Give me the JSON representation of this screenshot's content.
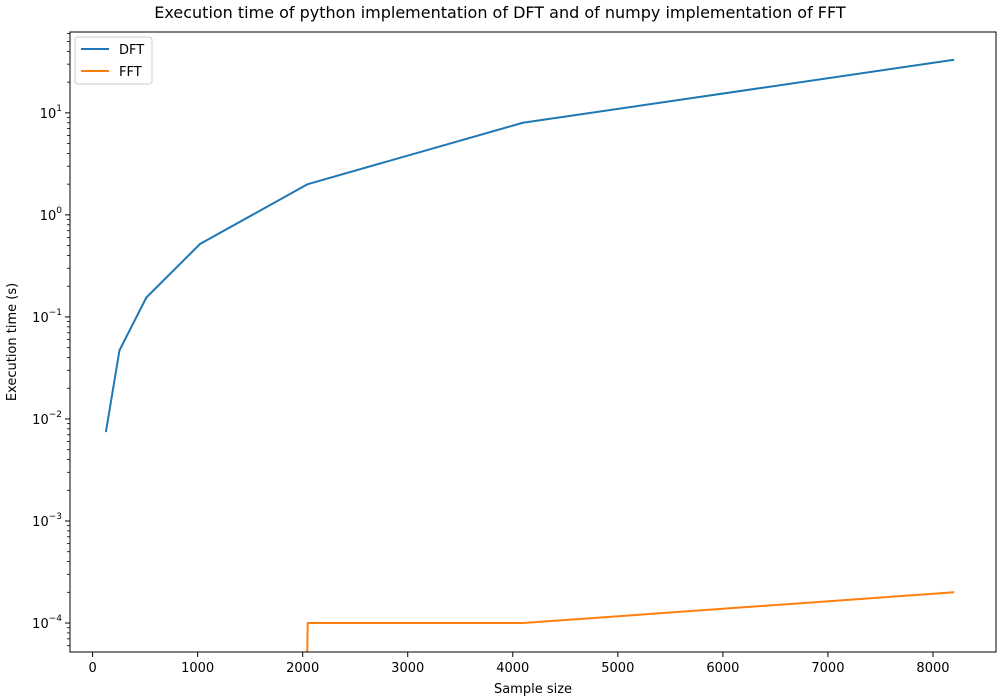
{
  "chart_data": {
    "type": "line",
    "title": "Execution time of python implementation of DFT and of numpy implementation of FFT",
    "xlabel": "Sample size",
    "ylabel": "Execution time (s)",
    "xlim": [
      -215,
      8600
    ],
    "ylim": [
      5.2e-05,
      62
    ],
    "yscale": "log",
    "grid": false,
    "legend_position": "top-left",
    "x_ticks": [
      0,
      1000,
      2000,
      3000,
      4000,
      5000,
      6000,
      7000,
      8000
    ],
    "y_ticks": [
      {
        "value": 0.0001,
        "base": "10",
        "exp": "−4"
      },
      {
        "value": 0.001,
        "base": "10",
        "exp": "−3"
      },
      {
        "value": 0.01,
        "base": "10",
        "exp": "−2"
      },
      {
        "value": 0.1,
        "base": "10",
        "exp": "−1"
      },
      {
        "value": 1,
        "base": "10",
        "exp": "0"
      },
      {
        "value": 10,
        "base": "10",
        "exp": "1"
      }
    ],
    "series": [
      {
        "name": "DFT",
        "color": "#1f77b4",
        "x": [
          128,
          256,
          512,
          1024,
          2048,
          4096,
          8192
        ],
        "y": [
          0.0076,
          0.047,
          0.155,
          0.52,
          2.0,
          8.0,
          33.0
        ]
      },
      {
        "name": "FFT",
        "color": "#ff7f0e",
        "x": [
          2040,
          2048,
          4096,
          8192
        ],
        "y": [
          3e-05,
          0.0001,
          0.0001,
          0.0002
        ]
      }
    ]
  }
}
